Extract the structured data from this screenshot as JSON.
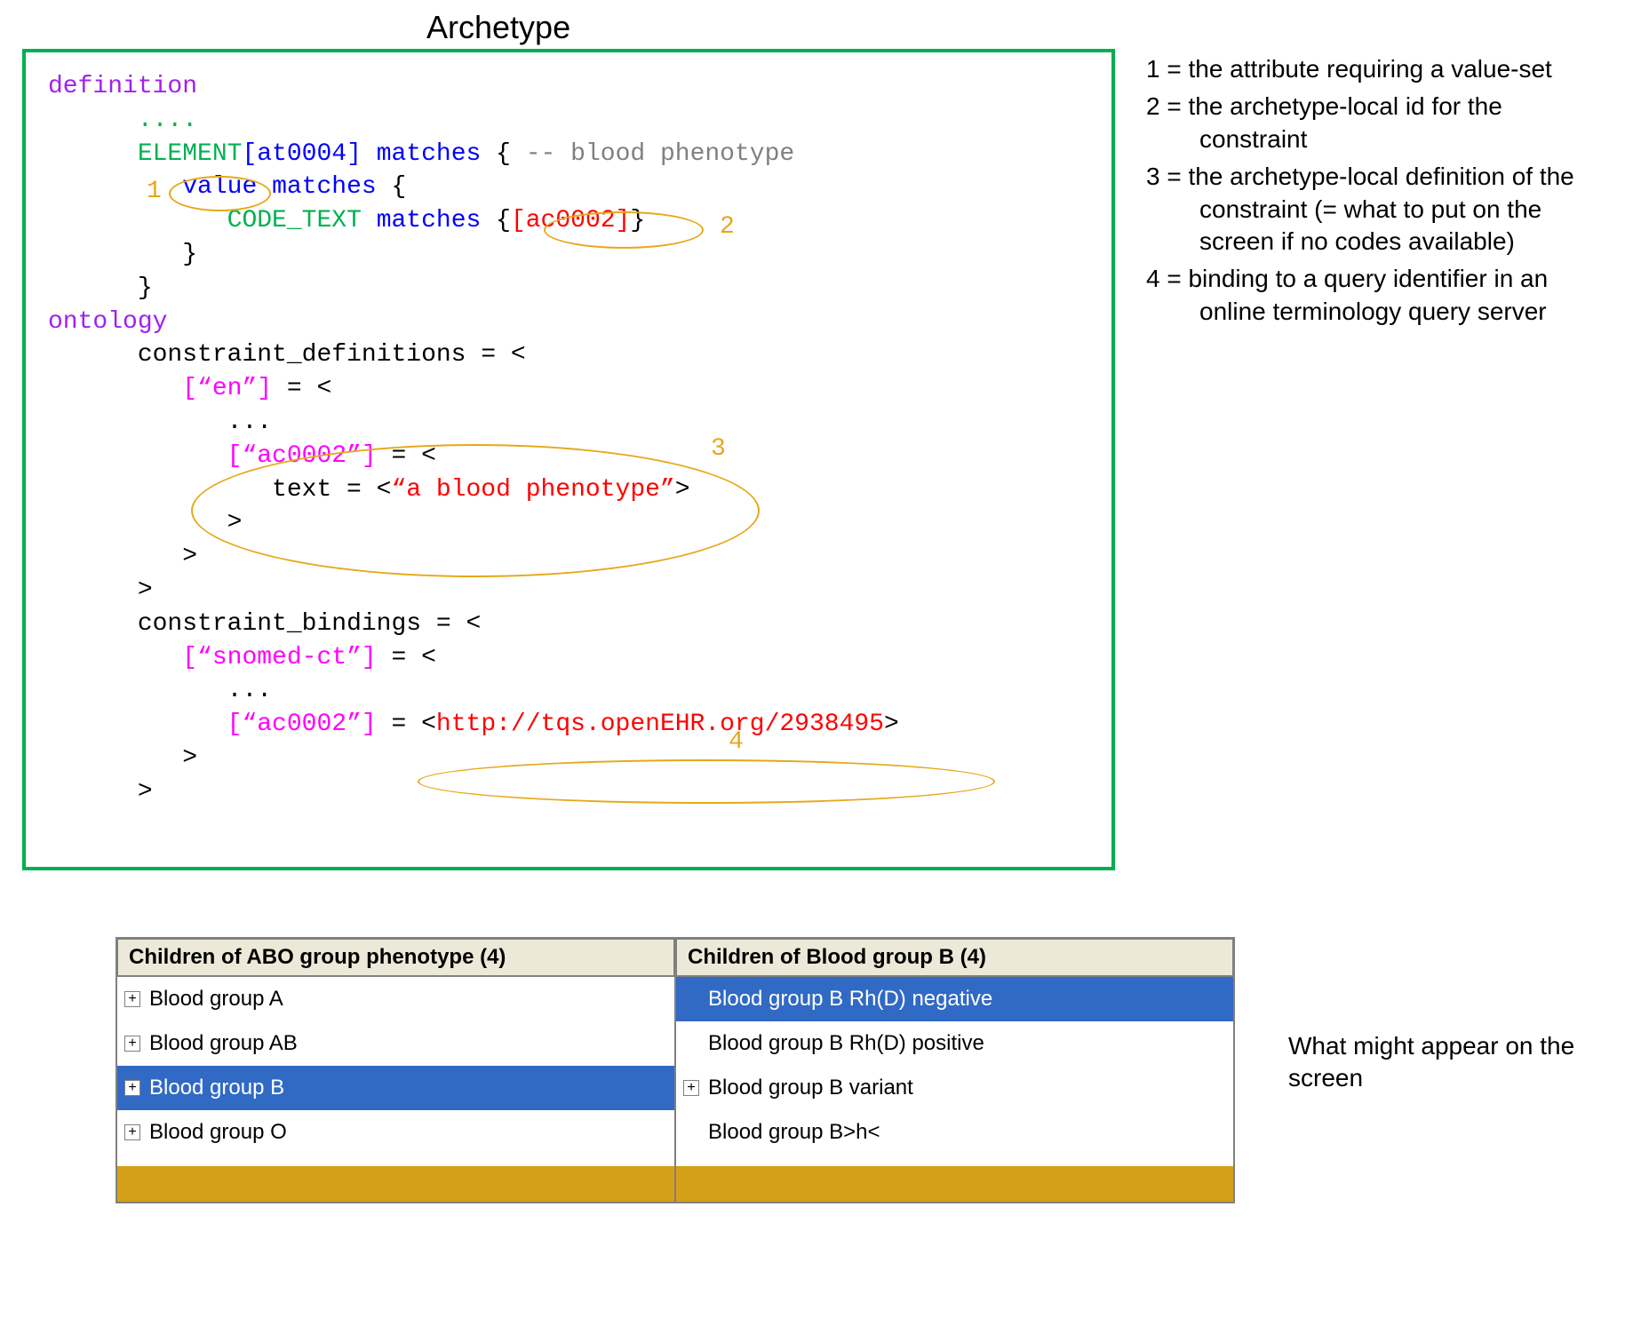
{
  "title": "Archetype",
  "legend": {
    "items": [
      "1 = the attribute requiring a value-set",
      "2 = the archetype-local id for the constraint",
      "3 = the archetype-local definition of the constraint (= what to put on the screen if no codes available)",
      "4 = binding to a query identifier in an online terminology query server"
    ]
  },
  "code": {
    "colors": {
      "keyword": "#a020f0",
      "type": "#00b050",
      "attr": "#0000ff",
      "comment": "#808080",
      "string": "#ff0000",
      "key": "#ff00ff",
      "default": "#000000",
      "border": "#00b050"
    },
    "font_family": "Courier New",
    "font_size": 28,
    "tokens": {
      "definition": "definition",
      "dots": "....",
      "element": "ELEMENT",
      "atcode": "[at0004]",
      "matches": "matches",
      "brace_open": "{",
      "brace_close": "}",
      "comment": "-- blood phenotype",
      "value": "value",
      "code_text": "CODE_TEXT",
      "ac_code": "[ac0002]",
      "ontology": "ontology",
      "constraint_definitions": "constraint_definitions = <",
      "en_key": "[“en”]",
      "eq_open": " = <",
      "dots3": "...",
      "ac_key": "[“ac0002”]",
      "text_eq": "text = <",
      "blood_pheno": "“a blood phenotype”",
      "gt": ">",
      "constraint_bindings": "constraint_bindings = <",
      "snomed_key": "[“snomed-ct”]",
      "url": "http://tqs.openEHR.org/2938495",
      "lt": "<"
    }
  },
  "annotations": {
    "color": "#e6a817",
    "labels": {
      "n1": "1",
      "n2": "2",
      "n3": "3",
      "n4": "4"
    }
  },
  "browser": {
    "colors": {
      "panel_bg": "#d4c690",
      "header_bg": "#ece9d8",
      "body_bg": "#ffffff",
      "selected_bg": "#316ac5",
      "selected_fg": "#ffffff",
      "footer_bg": "#d4a017",
      "border": "#808080"
    },
    "font_size": 24,
    "left": {
      "header": "Children of ABO group phenotype (4)",
      "rows": [
        {
          "expand": true,
          "label": "Blood group A",
          "selected": false
        },
        {
          "expand": true,
          "label": "Blood group AB",
          "selected": false
        },
        {
          "expand": true,
          "label": "Blood group B",
          "selected": true
        },
        {
          "expand": true,
          "label": "Blood group O",
          "selected": false
        }
      ]
    },
    "right": {
      "header": "Children of Blood group B (4)",
      "rows": [
        {
          "expand": false,
          "label": "Blood group B Rh(D) negative",
          "selected": true
        },
        {
          "expand": false,
          "label": "Blood group B Rh(D) positive",
          "selected": false
        },
        {
          "expand": true,
          "label": "Blood group B variant",
          "selected": false
        },
        {
          "expand": false,
          "label": "Blood group B>h<",
          "selected": false
        }
      ]
    }
  },
  "screen_note": "What might appear on the screen"
}
